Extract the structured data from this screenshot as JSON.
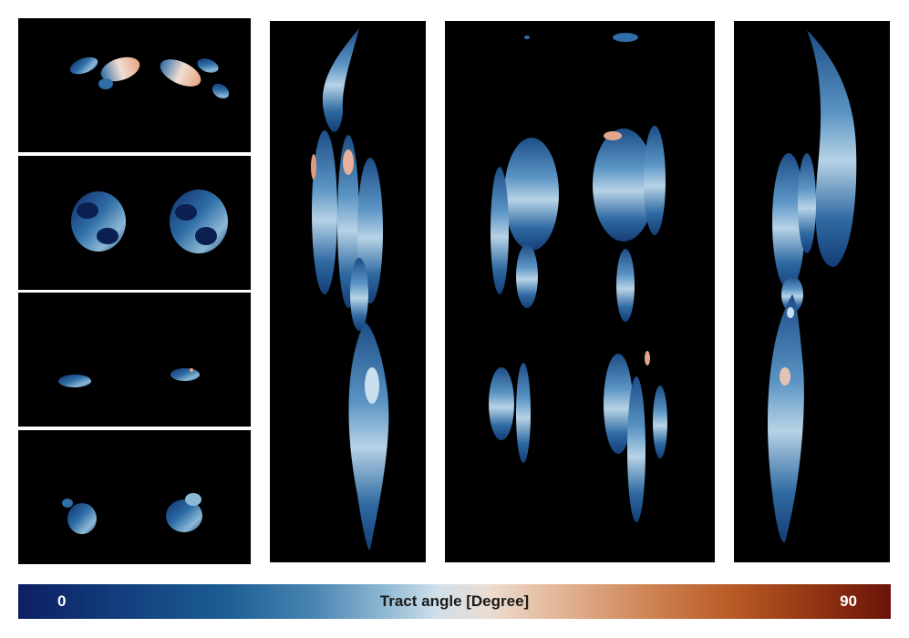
{
  "colorbar": {
    "min_label": "0",
    "max_label": "90",
    "title": "Tract angle [Degree]",
    "colors": {
      "low": "#0d1f63",
      "mid": "#cfe0ea",
      "high": "#6a140a"
    }
  },
  "panels": {
    "background": "#000000",
    "axial_slice_count": 4,
    "views": [
      "axial-slice",
      "axial-slice",
      "axial-slice",
      "axial-slice",
      "coronal-left",
      "coronal-right",
      "sagittal"
    ]
  }
}
